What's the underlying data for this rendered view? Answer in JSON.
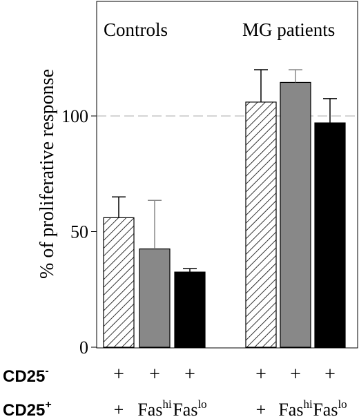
{
  "chart_data": {
    "type": "bar",
    "ylabel": "% of proliferative response",
    "ylim": [
      0,
      145
    ],
    "yticks": [
      0,
      50,
      100
    ],
    "reference_line": 100,
    "grid": false,
    "groups": [
      {
        "title": "Controls",
        "bars": [
          {
            "cd25_minus": "+",
            "cd25_plus_base": "+",
            "cd25_plus_sup": "",
            "value": 56,
            "error": 9,
            "fill": "hatch"
          },
          {
            "cd25_minus": "+",
            "cd25_plus_base": "Fas",
            "cd25_plus_sup": "hi",
            "value": 42.5,
            "error": 21,
            "fill": "#888888"
          },
          {
            "cd25_minus": "+",
            "cd25_plus_base": "Fas",
            "cd25_plus_sup": "lo",
            "value": 32.5,
            "error": 1.5,
            "fill": "#000000"
          }
        ]
      },
      {
        "title": "MG patients",
        "bars": [
          {
            "cd25_minus": "+",
            "cd25_plus_base": "+",
            "cd25_plus_sup": "",
            "value": 106,
            "error": 14,
            "fill": "hatch"
          },
          {
            "cd25_minus": "+",
            "cd25_plus_base": "Fas",
            "cd25_plus_sup": "hi",
            "value": 114.5,
            "error": 5.5,
            "fill": "#888888"
          },
          {
            "cd25_minus": "+",
            "cd25_plus_base": "Fas",
            "cd25_plus_sup": "lo",
            "value": 97,
            "error": 10.5,
            "fill": "#000000"
          }
        ]
      }
    ],
    "row_labels": [
      {
        "base": "CD25",
        "sup": "-"
      },
      {
        "base": "CD25",
        "sup": "+"
      }
    ]
  }
}
